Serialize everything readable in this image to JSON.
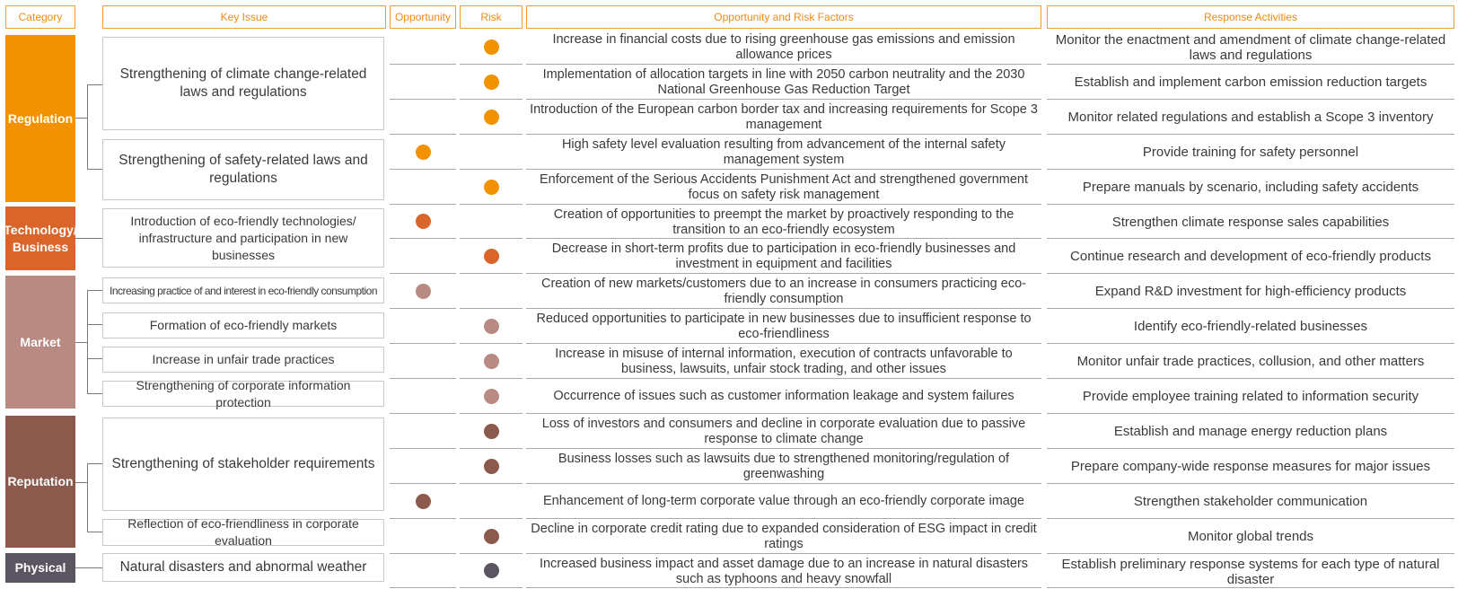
{
  "headers": {
    "category": "Category",
    "key_issue": "Key Issue",
    "opportunity": "Opportunity",
    "risk": "Risk",
    "factors": "Opportunity and Risk Factors",
    "response": "Response Activities"
  },
  "categories": [
    {
      "label": "Regulation",
      "color": "#f39200"
    },
    {
      "label": "Technology/\nBusiness",
      "color": "#d9652b"
    },
    {
      "label": "Market",
      "color": "#b88a82"
    },
    {
      "label": "Reputation",
      "color": "#8c5a4d"
    },
    {
      "label": "Physical",
      "color": "#5a5560"
    }
  ],
  "key_issues": [
    "Strengthening of climate change-related laws and regulations",
    "Strengthening of safety-related laws and regulations",
    "Introduction of eco-friendly technologies/ infrastructure and participation in new businesses",
    "Increasing practice of and interest in eco-friendly consumption",
    "Formation of eco-friendly markets",
    "Increase in unfair trade practices",
    "Strengthening of corporate information protection",
    "Strengthening of stakeholder requirements",
    "Reflection of eco-friendliness in corporate evaluation",
    "Natural disasters and abnormal weather"
  ],
  "rows": [
    {
      "type": "risk",
      "color": "#f39200",
      "factor": "Increase in financial costs due to rising greenhouse gas emissions and emission allowance prices",
      "response": "Monitor the enactment and amendment of climate change-related laws and regulations"
    },
    {
      "type": "risk",
      "color": "#f39200",
      "factor": "Implementation of allocation targets in line with 2050 carbon neutrality and the 2030 National Greenhouse Gas Reduction Target",
      "response": "Establish and implement carbon emission reduction targets"
    },
    {
      "type": "risk",
      "color": "#f39200",
      "factor": "Introduction of the European carbon border tax and increasing requirements for Scope 3 management",
      "response": "Monitor related regulations and establish a Scope 3 inventory"
    },
    {
      "type": "opportunity",
      "color": "#f39200",
      "factor": "High safety level evaluation resulting from advancement of the internal safety management system",
      "response": "Provide training for safety personnel"
    },
    {
      "type": "risk",
      "color": "#f39200",
      "factor": "Enforcement of the Serious Accidents Punishment Act and strengthened government focus on safety risk management",
      "response": "Prepare manuals by scenario, including safety accidents"
    },
    {
      "type": "opportunity",
      "color": "#d9652b",
      "factor": "Creation of opportunities to preempt the market by proactively responding to the transition to an eco-friendly ecosystem",
      "response": "Strengthen climate response sales capabilities"
    },
    {
      "type": "risk",
      "color": "#d9652b",
      "factor": "Decrease in short-term profits due to participation in eco-friendly businesses and investment in equipment and facilities",
      "response": "Continue research and development of eco-friendly products"
    },
    {
      "type": "opportunity",
      "color": "#b88a82",
      "factor": "Creation of new markets/customers due to an increase in consumers practicing eco-friendly consumption",
      "response": "Expand R&D investment for high-efficiency products"
    },
    {
      "type": "risk",
      "color": "#b88a82",
      "factor": "Reduced opportunities to participate in new businesses due to insufficient response to eco-friendliness",
      "response": "Identify eco-friendly-related businesses"
    },
    {
      "type": "risk",
      "color": "#b88a82",
      "factor": "Increase in misuse of internal information, execution of contracts unfavorable to business, lawsuits, unfair stock trading, and other issues",
      "response": "Monitor unfair trade practices, collusion, and other matters"
    },
    {
      "type": "risk",
      "color": "#b88a82",
      "factor": "Occurrence of issues such as customer information leakage and system failures",
      "response": "Provide employee training related to information security"
    },
    {
      "type": "risk",
      "color": "#8c5a4d",
      "factor": "Loss of investors and consumers and decline in corporate evaluation due to passive response to climate change",
      "response": "Establish and manage energy reduction plans"
    },
    {
      "type": "risk",
      "color": "#8c5a4d",
      "factor": "Business losses such as lawsuits due to strengthened monitoring/regulation of greenwashing",
      "response": "Prepare company-wide response measures for major issues"
    },
    {
      "type": "opportunity",
      "color": "#8c5a4d",
      "factor": "Enhancement of long-term corporate value through an eco-friendly corporate image",
      "response": "Strengthen stakeholder communication"
    },
    {
      "type": "risk",
      "color": "#8c5a4d",
      "factor": "Decline in corporate credit rating due to expanded consideration of ESG impact in credit ratings",
      "response": "Monitor global trends"
    },
    {
      "type": "risk",
      "color": "#5a5560",
      "factor": "Increased business impact and asset damage due to an increase in natural disasters such as typhoons and heavy snowfall",
      "response": "Establish preliminary response systems for each type of natural disaster"
    }
  ]
}
